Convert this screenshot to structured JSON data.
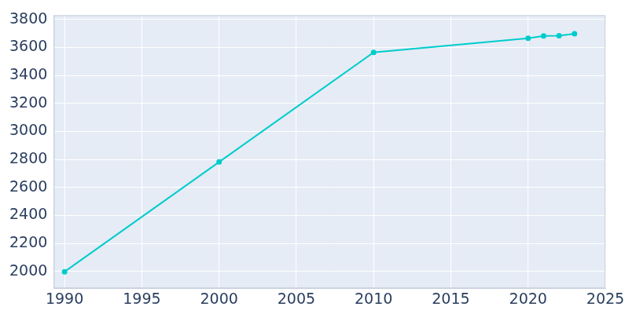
{
  "chart_data": {
    "type": "line",
    "x": [
      1990,
      2000,
      2010,
      2020,
      2021,
      2022,
      2023
    ],
    "values": [
      1998,
      2782,
      3565,
      3665,
      3682,
      3684,
      3698
    ],
    "color": "#00cccc",
    "marker": "circle",
    "xlim": [
      1989.3,
      2025
    ],
    "xticks": [
      1990,
      1995,
      2000,
      2005,
      2010,
      2015,
      2020,
      2025
    ],
    "ylim": [
      1880,
      3830
    ],
    "yticks": [
      2000,
      2200,
      2400,
      2600,
      2800,
      3000,
      3200,
      3400,
      3600,
      3800
    ],
    "grid": true
  }
}
